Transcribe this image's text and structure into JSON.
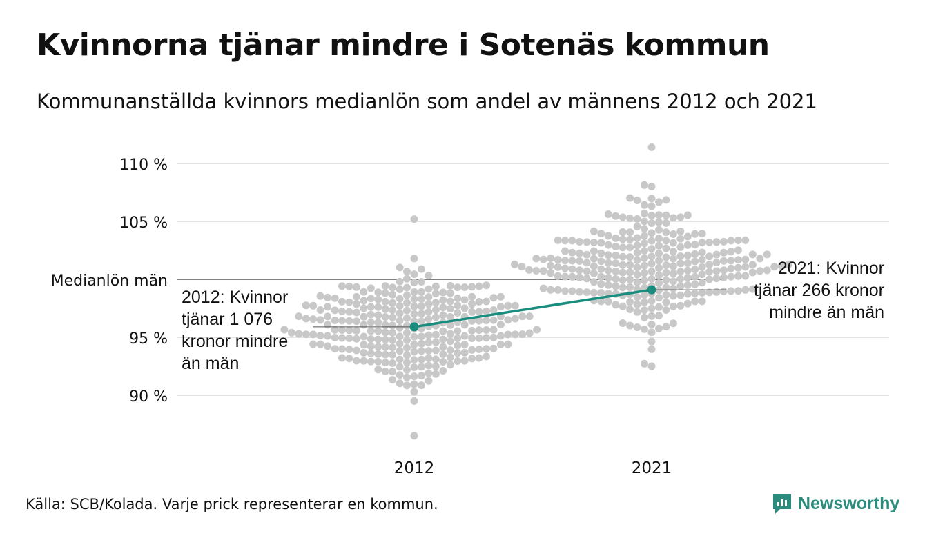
{
  "title": "Kvinnorna tjänar mindre i Sotenäs kommun",
  "subtitle": "Kommunanställda kvinnors medianlön som andel av männens 2012 och 2021",
  "source": "Källa: SCB/Kolada. Varje prick representerar en kommun.",
  "brand": {
    "name": "Newsworthy",
    "icon": "newsworthy-logo-icon",
    "color": "#2a8c7c"
  },
  "colors": {
    "dots": "#c8c8c8",
    "highlight": "#1b8d7f",
    "grid": "#e3e3e3",
    "reference": "#333333"
  },
  "chart_data": {
    "type": "scatter",
    "subtype": "beeswarm",
    "categories": [
      "2012",
      "2021"
    ],
    "y_ticks": [
      {
        "value": 90,
        "label": "90 %"
      },
      {
        "value": 95,
        "label": "95 %"
      },
      {
        "value": 105,
        "label": "105 %"
      },
      {
        "value": 110,
        "label": "110 %"
      }
    ],
    "ylim": [
      86.5,
      111.5
    ],
    "grid": true,
    "reference_line": {
      "value": 100,
      "label": "Medianlön män"
    },
    "distributions": [
      {
        "category": "2012",
        "n": 290,
        "median": 95.8,
        "spread": 2.4,
        "min": 86.5,
        "max": 105.2
      },
      {
        "category": "2021",
        "n": 290,
        "median": 101.2,
        "spread": 2.5,
        "min": 92.5,
        "max": 111.4
      }
    ],
    "highlight": {
      "values": [
        {
          "category": "2012",
          "value": 95.9
        },
        {
          "category": "2021",
          "value": 99.1
        }
      ]
    },
    "annotations": [
      {
        "category": "2012",
        "text": "2012: Kvinnor\ntjänar 1 076\nkronor mindre\nän män"
      },
      {
        "category": "2021",
        "text": "2021: Kvinnor\ntjänar 266 kronor\nmindre än män"
      }
    ]
  }
}
